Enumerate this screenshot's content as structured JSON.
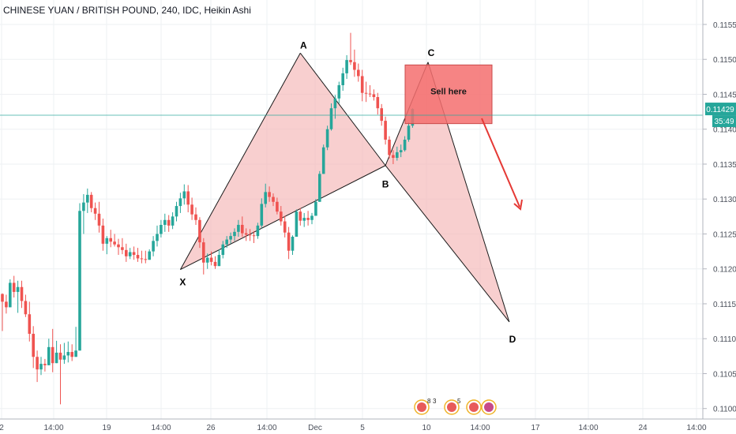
{
  "chart_data": {
    "type": "candlestick",
    "title": "CHINESE YUAN / BRITISH POUND, 240, IDC, Heikin Ashi",
    "y_ticks": [
      "0.11550",
      "0.11500",
      "0.11450",
      "0.11400",
      "0.11350",
      "0.11300",
      "0.11250",
      "0.11200",
      "0.11150",
      "0.11100",
      "0.11050",
      "0.11000"
    ],
    "x_ticks": [
      "2",
      "14:00",
      "19",
      "14:00",
      "26",
      "14:00",
      "Dec",
      "5",
      "10",
      "14:00",
      "17",
      "14:00",
      "24",
      "14:00"
    ],
    "ylim": [
      0.10985,
      0.11585
    ],
    "last_price": "0.11429",
    "countdown": "35:49",
    "colors": {
      "up": "#26a69a",
      "down": "#ef5350",
      "pattern_fill": "#f4b6b6",
      "sell_zone": "#f46f6f",
      "price_line": "#26a69a",
      "arrow": "#e53935"
    },
    "candles": [
      [
        0.11164,
        0.11165,
        0.11111,
        0.11153
      ],
      [
        0.11153,
        0.11163,
        0.11136,
        0.11145
      ],
      [
        0.11145,
        0.11185,
        0.11145,
        0.1118
      ],
      [
        0.1118,
        0.1119,
        0.11159,
        0.11167
      ],
      [
        0.11167,
        0.11183,
        0.11137,
        0.11174
      ],
      [
        0.11174,
        0.11183,
        0.11144,
        0.11154
      ],
      [
        0.11154,
        0.11163,
        0.11131,
        0.11135
      ],
      [
        0.11135,
        0.11153,
        0.11096,
        0.11107
      ],
      [
        0.11107,
        0.11118,
        0.11058,
        0.11074
      ],
      [
        0.11074,
        0.11083,
        0.11038,
        0.11056
      ],
      [
        0.11056,
        0.11074,
        0.11048,
        0.11064
      ],
      [
        0.11064,
        0.11071,
        0.11053,
        0.11062
      ],
      [
        0.11062,
        0.111,
        0.11062,
        0.11088
      ],
      [
        0.11088,
        0.11114,
        0.11052,
        0.11065
      ],
      [
        0.11065,
        0.11097,
        0.11065,
        0.1108
      ],
      [
        0.1108,
        0.11092,
        0.11006,
        0.1107
      ],
      [
        0.1107,
        0.11094,
        0.11064,
        0.11076
      ],
      [
        0.11076,
        0.11096,
        0.11066,
        0.11081
      ],
      [
        0.11081,
        0.11092,
        0.11068,
        0.11074
      ],
      [
        0.11074,
        0.11117,
        0.11074,
        0.11083
      ],
      [
        0.11083,
        0.11294,
        0.11083,
        0.11283
      ],
      [
        0.11283,
        0.11307,
        0.1125,
        0.11295
      ],
      [
        0.11295,
        0.11315,
        0.1128,
        0.11306
      ],
      [
        0.11306,
        0.1131,
        0.11281,
        0.11287
      ],
      [
        0.11287,
        0.11295,
        0.1127,
        0.11279
      ],
      [
        0.11279,
        0.11296,
        0.11252,
        0.11262
      ],
      [
        0.11262,
        0.11272,
        0.11226,
        0.11236
      ],
      [
        0.11236,
        0.11247,
        0.11221,
        0.11244
      ],
      [
        0.11244,
        0.11256,
        0.11231,
        0.11239
      ],
      [
        0.11239,
        0.1125,
        0.11232,
        0.11235
      ],
      [
        0.11235,
        0.11243,
        0.1122,
        0.11231
      ],
      [
        0.11231,
        0.11244,
        0.11221,
        0.11227
      ],
      [
        0.11227,
        0.11236,
        0.1121,
        0.11218
      ],
      [
        0.11218,
        0.1123,
        0.11214,
        0.11224
      ],
      [
        0.11224,
        0.11232,
        0.11213,
        0.1122
      ],
      [
        0.1122,
        0.1123,
        0.1121,
        0.11215
      ],
      [
        0.11215,
        0.11226,
        0.11208,
        0.11214
      ],
      [
        0.11214,
        0.11226,
        0.11208,
        0.11213
      ],
      [
        0.11213,
        0.11228,
        0.11213,
        0.11225
      ],
      [
        0.11225,
        0.11247,
        0.11218,
        0.1124
      ],
      [
        0.1124,
        0.11262,
        0.11232,
        0.1125
      ],
      [
        0.1125,
        0.1127,
        0.11245,
        0.11263
      ],
      [
        0.11263,
        0.11279,
        0.11253,
        0.1127
      ],
      [
        0.1127,
        0.11277,
        0.11253,
        0.11262
      ],
      [
        0.11262,
        0.11281,
        0.11257,
        0.11275
      ],
      [
        0.11275,
        0.11296,
        0.11268,
        0.1129
      ],
      [
        0.1129,
        0.11309,
        0.1128,
        0.11301
      ],
      [
        0.11301,
        0.11321,
        0.11292,
        0.11311
      ],
      [
        0.11311,
        0.1132,
        0.11281,
        0.11292
      ],
      [
        0.11292,
        0.11302,
        0.1127,
        0.11278
      ],
      [
        0.11278,
        0.11288,
        0.11263,
        0.1127
      ],
      [
        0.1127,
        0.11274,
        0.1123,
        0.11238
      ],
      [
        0.11238,
        0.11244,
        0.11192,
        0.11209
      ],
      [
        0.11209,
        0.11222,
        0.112,
        0.11216
      ],
      [
        0.11216,
        0.11225,
        0.11205,
        0.1121
      ],
      [
        0.1121,
        0.11218,
        0.112,
        0.11204
      ],
      [
        0.11204,
        0.11228,
        0.11204,
        0.1122
      ],
      [
        0.1122,
        0.1124,
        0.11215,
        0.11235
      ],
      [
        0.11235,
        0.11247,
        0.1123,
        0.11242
      ],
      [
        0.11242,
        0.11252,
        0.11236,
        0.11247
      ],
      [
        0.11247,
        0.11258,
        0.1124,
        0.11253
      ],
      [
        0.11253,
        0.1127,
        0.11246,
        0.11263
      ],
      [
        0.11263,
        0.11275,
        0.11246,
        0.11251
      ],
      [
        0.11251,
        0.11258,
        0.1124,
        0.11249
      ],
      [
        0.11249,
        0.11257,
        0.1124,
        0.11248
      ],
      [
        0.11248,
        0.11254,
        0.11237,
        0.11247
      ],
      [
        0.11247,
        0.11266,
        0.11243,
        0.11262
      ],
      [
        0.11262,
        0.11301,
        0.11258,
        0.11293
      ],
      [
        0.11293,
        0.11322,
        0.11288,
        0.1131
      ],
      [
        0.1131,
        0.11318,
        0.11296,
        0.11303
      ],
      [
        0.11303,
        0.11308,
        0.1129,
        0.11296
      ],
      [
        0.11296,
        0.11302,
        0.11278,
        0.11282
      ],
      [
        0.11282,
        0.1129,
        0.11262,
        0.11268
      ],
      [
        0.11268,
        0.11276,
        0.11245,
        0.11252
      ],
      [
        0.11252,
        0.1126,
        0.11214,
        0.11226
      ],
      [
        0.11226,
        0.11248,
        0.1122,
        0.11246
      ],
      [
        0.11246,
        0.11285,
        0.11246,
        0.11282
      ],
      [
        0.11282,
        0.11287,
        0.11262,
        0.11269
      ],
      [
        0.11269,
        0.1128,
        0.1126,
        0.11273
      ],
      [
        0.11273,
        0.11283,
        0.11262,
        0.1127
      ],
      [
        0.1127,
        0.1128,
        0.11264,
        0.11276
      ],
      [
        0.11276,
        0.113,
        0.11276,
        0.11296
      ],
      [
        0.11296,
        0.1134,
        0.11296,
        0.11336
      ],
      [
        0.11336,
        0.11378,
        0.11336,
        0.11374
      ],
      [
        0.11374,
        0.11405,
        0.1137,
        0.114
      ],
      [
        0.114,
        0.11437,
        0.11398,
        0.1143
      ],
      [
        0.1143,
        0.11449,
        0.11415,
        0.11444
      ],
      [
        0.11444,
        0.11468,
        0.11437,
        0.11463
      ],
      [
        0.11463,
        0.11488,
        0.11455,
        0.1148
      ],
      [
        0.1148,
        0.11506,
        0.11472,
        0.11499
      ],
      [
        0.11499,
        0.11538,
        0.11492,
        0.11496
      ],
      [
        0.11496,
        0.11514,
        0.11475,
        0.11485
      ],
      [
        0.11485,
        0.11494,
        0.11468,
        0.11476
      ],
      [
        0.11476,
        0.11485,
        0.1144,
        0.11452
      ],
      [
        0.11452,
        0.11468,
        0.11439,
        0.11451
      ],
      [
        0.11451,
        0.11463,
        0.11446,
        0.1145
      ],
      [
        0.1145,
        0.11457,
        0.11441,
        0.11446
      ],
      [
        0.11446,
        0.11452,
        0.11421,
        0.1143
      ],
      [
        0.1143,
        0.11436,
        0.11405,
        0.11412
      ],
      [
        0.11412,
        0.11418,
        0.11378,
        0.11385
      ],
      [
        0.11385,
        0.1139,
        0.11358,
        0.11363
      ],
      [
        0.11363,
        0.1137,
        0.1135,
        0.11359
      ],
      [
        0.11359,
        0.11375,
        0.11355,
        0.11367
      ],
      [
        0.11367,
        0.11378,
        0.1136,
        0.1137
      ],
      [
        0.1137,
        0.1139,
        0.11368,
        0.11385
      ],
      [
        0.11385,
        0.1141,
        0.11382,
        0.11405
      ],
      [
        0.11405,
        0.1143,
        0.11402,
        0.11429
      ]
    ],
    "pattern_points": [
      {
        "label": "X",
        "x": 46,
        "price": 0.11199
      },
      {
        "label": "A",
        "x": 77,
        "price": 0.11509
      },
      {
        "label": "B",
        "x": 99,
        "price": 0.11348
      },
      {
        "label": "C",
        "x": 110,
        "price": 0.11496
      },
      {
        "label": "D",
        "x": 131,
        "price": 0.11124
      }
    ],
    "annotations": {
      "sell_zone_label": "Sell here",
      "sell_zone_range": [
        0.11408,
        0.11492
      ]
    },
    "event_badges": [
      {
        "count": "8"
      },
      {
        "count": "3"
      },
      {
        "count": "5"
      }
    ]
  }
}
